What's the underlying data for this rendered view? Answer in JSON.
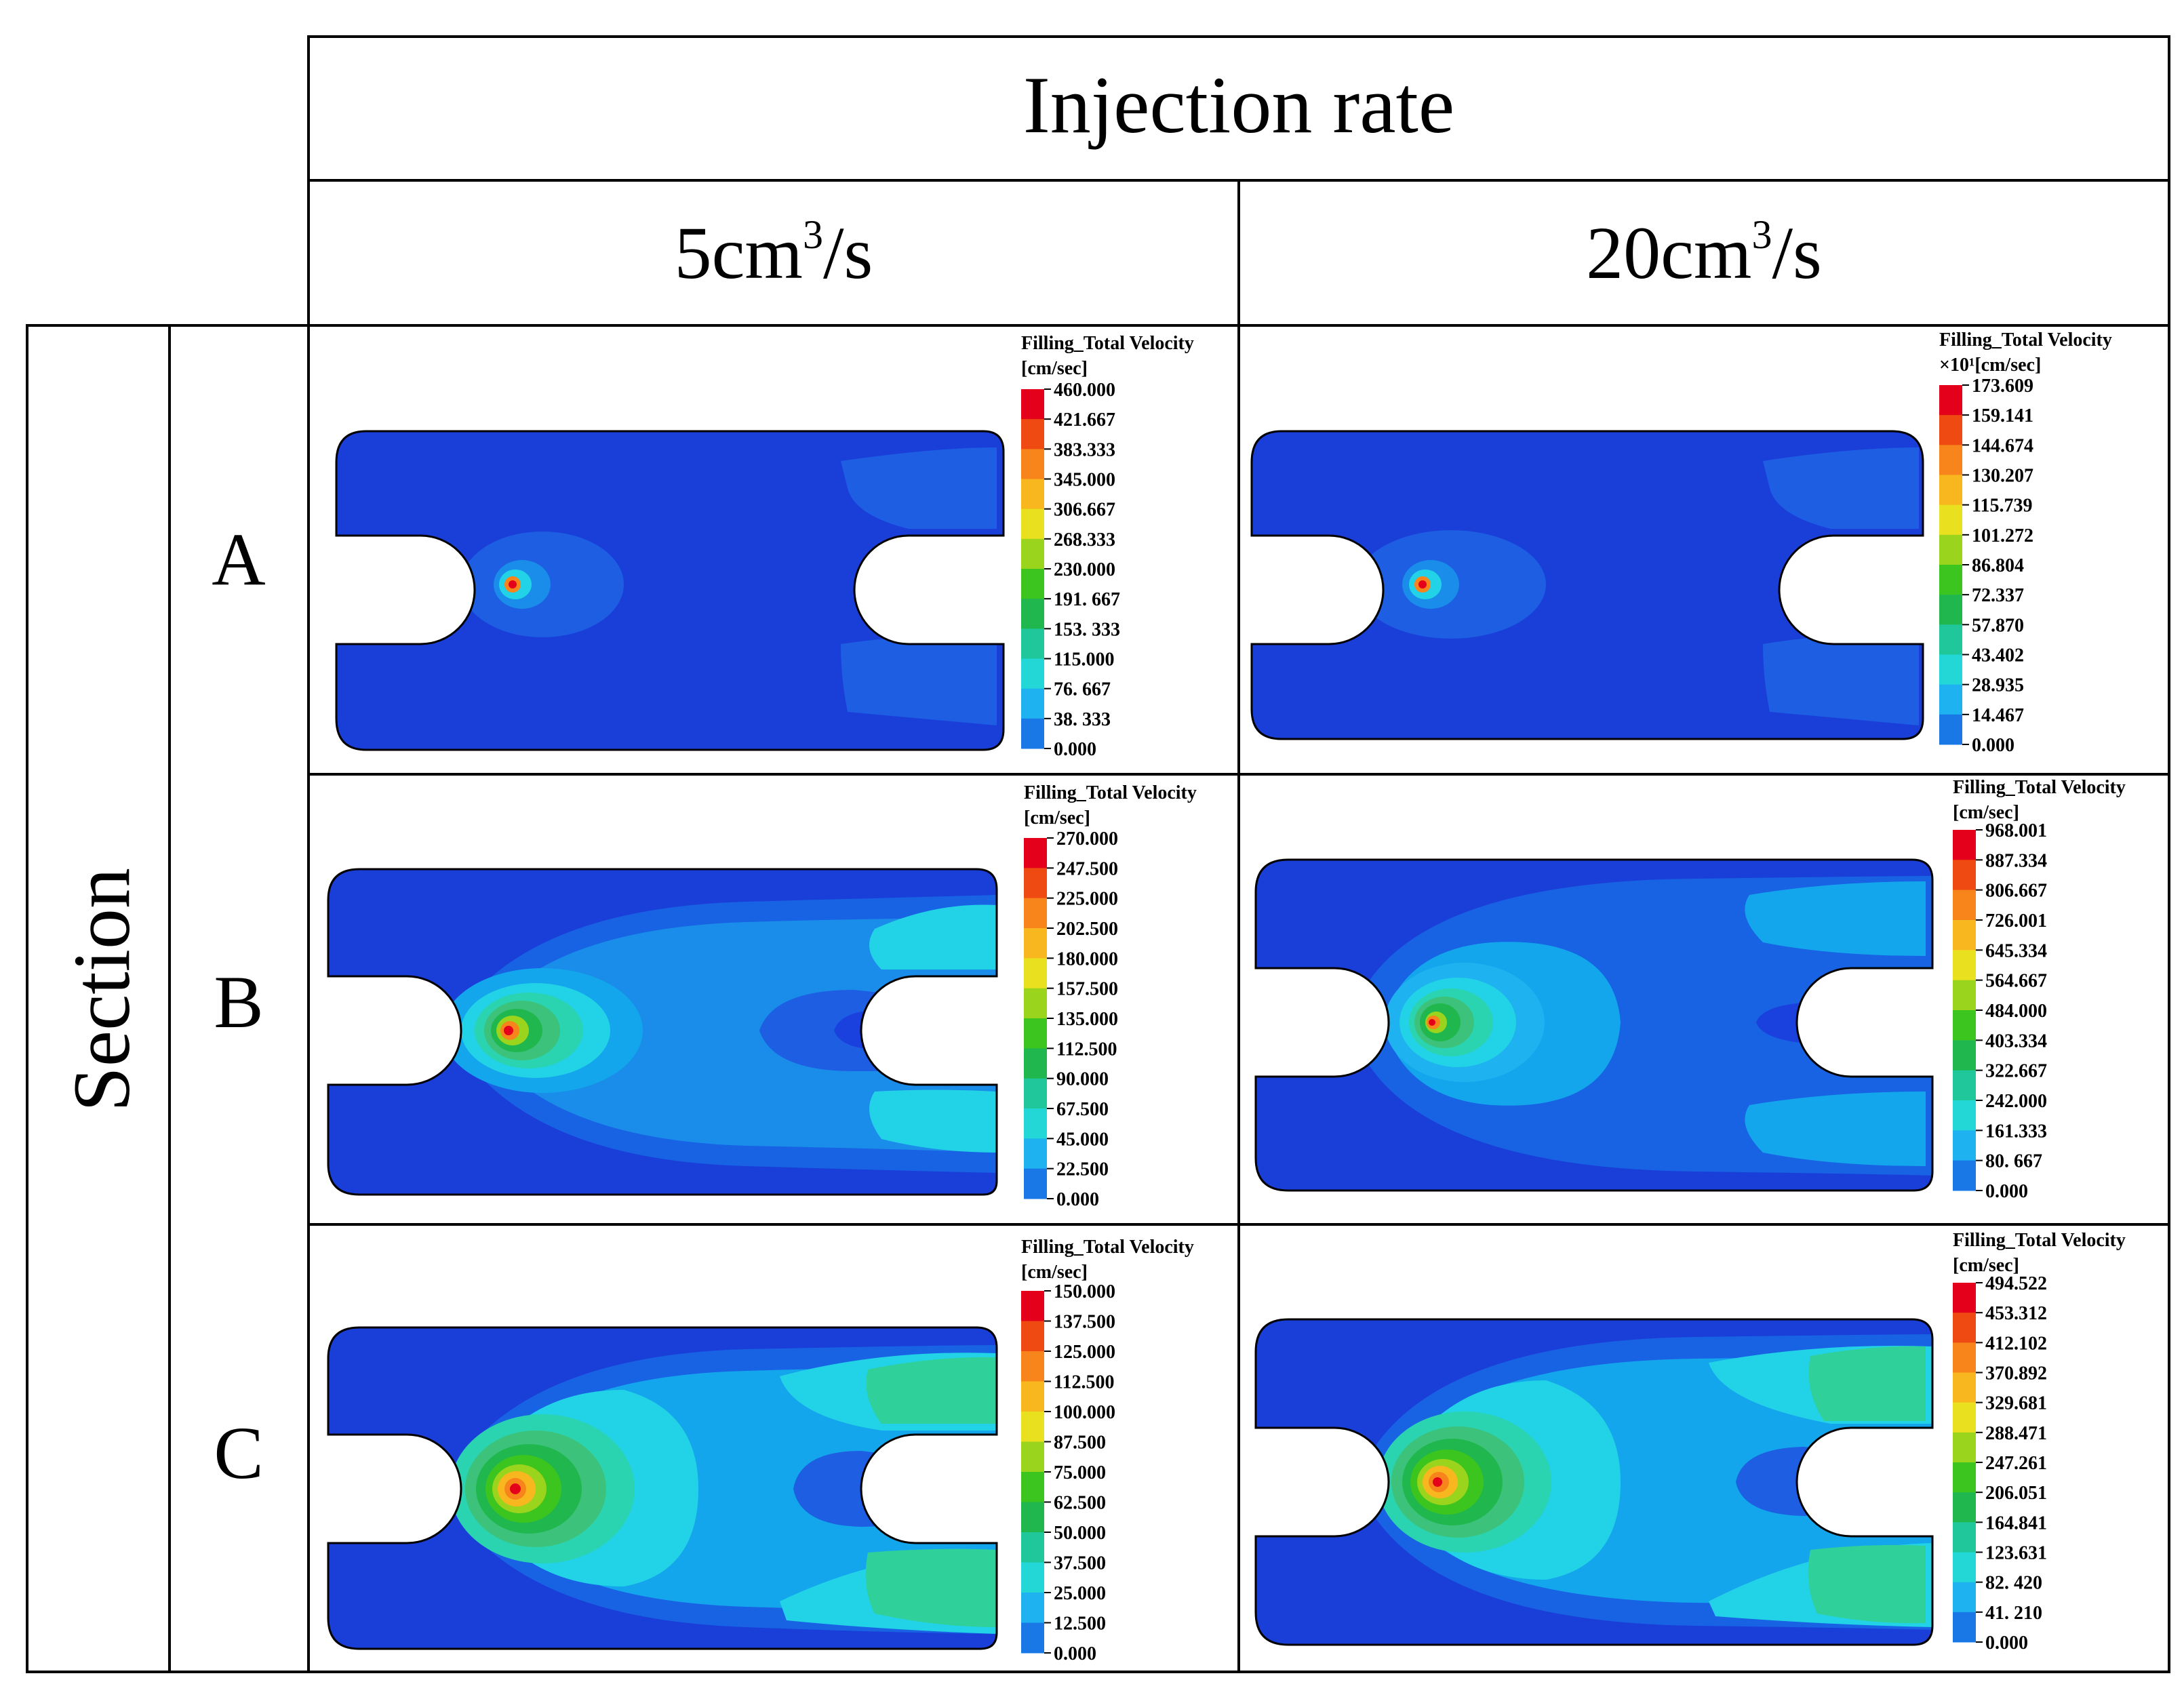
{
  "header": {
    "group_title": "Injection rate",
    "columns": [
      {
        "value": "5cm",
        "sup": "3",
        "rest": "/s"
      },
      {
        "value": "20cm",
        "sup": "3",
        "rest": "/s"
      }
    ],
    "row_group_title": "Section",
    "rows": [
      "A",
      "B",
      "C"
    ]
  },
  "panels": [
    {
      "id": "A-5",
      "title": "Filling_Total Velocity",
      "unit": "[cm/sec]",
      "ticks": [
        "460.000",
        "421.667",
        "383.333",
        "345.000",
        "306.667",
        "268.333",
        "230.000",
        "191. 667",
        "153. 333",
        "115.000",
        "76. 667",
        "38. 333",
        "0.000"
      ]
    },
    {
      "id": "A-20",
      "title": "Filling_Total Velocity",
      "unit": "×10¹[cm/sec]",
      "ticks": [
        "173.609",
        "159.141",
        "144.674",
        "130.207",
        "115.739",
        "101.272",
        "86.804",
        "72.337",
        "57.870",
        "43.402",
        "28.935",
        "14.467",
        "0.000"
      ]
    },
    {
      "id": "B-5",
      "title": "Filling_Total Velocity",
      "unit": "[cm/sec]",
      "ticks": [
        "270.000",
        "247.500",
        "225.000",
        "202.500",
        "180.000",
        "157.500",
        "135.000",
        "112.500",
        "90.000",
        "67.500",
        "45.000",
        "22.500",
        "0.000"
      ]
    },
    {
      "id": "B-20",
      "title": "Filling_Total Velocity",
      "unit": "[cm/sec]",
      "ticks": [
        "968.001",
        "887.334",
        "806.667",
        "726.001",
        "645.334",
        "564.667",
        "484.000",
        "403.334",
        "322.667",
        "242.000",
        "161.333",
        "80. 667",
        "0.000"
      ]
    },
    {
      "id": "C-5",
      "title": "Filling_Total Velocity",
      "unit": "[cm/sec]",
      "ticks": [
        "150.000",
        "137.500",
        "125.000",
        "112.500",
        "100.000",
        "87.500",
        "75.000",
        "62.500",
        "50.000",
        "37.500",
        "25.000",
        "12.500",
        "0.000"
      ]
    },
    {
      "id": "C-20",
      "title": "Filling_Total Velocity",
      "unit": "[cm/sec]",
      "ticks": [
        "494.522",
        "453.312",
        "412.102",
        "370.892",
        "329.681",
        "288.471",
        "247.261",
        "206.051",
        "164.841",
        "123.631",
        "82. 420",
        "41. 210",
        "0.000"
      ]
    }
  ],
  "colors": {
    "scale": [
      "#e4001a",
      "#ee4a12",
      "#f7851c",
      "#f9b71f",
      "#e9e020",
      "#9ad41c",
      "#3cc41f",
      "#20b84e",
      "#1fc79a",
      "#22d7d6",
      "#1fb2f0",
      "#1a78e6",
      "#1a40dd"
    ],
    "base": "#1a3fd9",
    "level1": "#1763e3",
    "level2": "#1a8ce9",
    "level3": "#14a6ec",
    "level4": "#22d2e6",
    "level5": "#2ad4b0",
    "level6": "#3cc27a"
  }
}
